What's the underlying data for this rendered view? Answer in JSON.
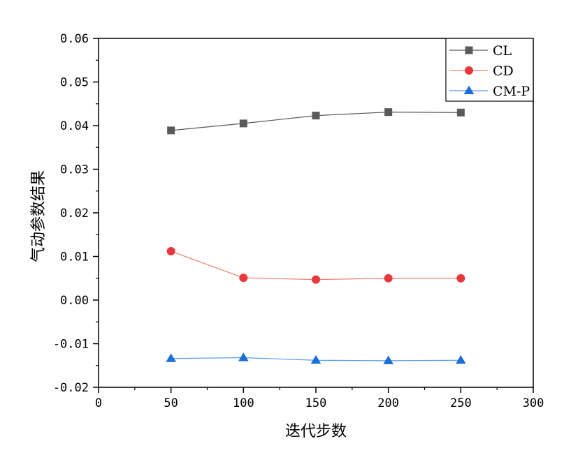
{
  "chart_data": {
    "type": "line",
    "xlabel": "迭代步数",
    "ylabel": "气动参数结果",
    "xlim": [
      0,
      300
    ],
    "ylim": [
      -0.02,
      0.06
    ],
    "x_ticks": [
      "0",
      "50",
      "100",
      "150",
      "200",
      "250",
      "300"
    ],
    "y_ticks": [
      "-0.02",
      "-0.01",
      "0.00",
      "0.01",
      "0.02",
      "0.03",
      "0.04",
      "0.05",
      "0.06"
    ],
    "grid": false,
    "legend_position": "top-right",
    "x": [
      50,
      100,
      150,
      200,
      250
    ],
    "series": [
      {
        "name": "CL",
        "values": [
          0.0389,
          0.0405,
          0.0423,
          0.0431,
          0.043
        ],
        "color": "#595959",
        "line_color": "#595959",
        "marker": "square"
      },
      {
        "name": "CD",
        "values": [
          0.0112,
          0.0051,
          0.0047,
          0.005,
          0.005
        ],
        "color": "#e8383d",
        "line_color": "#f08070",
        "marker": "circle"
      },
      {
        "name": "CM-P",
        "values": [
          -0.0134,
          -0.0132,
          -0.0138,
          -0.0139,
          -0.0138
        ],
        "color": "#1c6fd6",
        "line_color": "#5b9be8",
        "marker": "triangle"
      }
    ]
  }
}
